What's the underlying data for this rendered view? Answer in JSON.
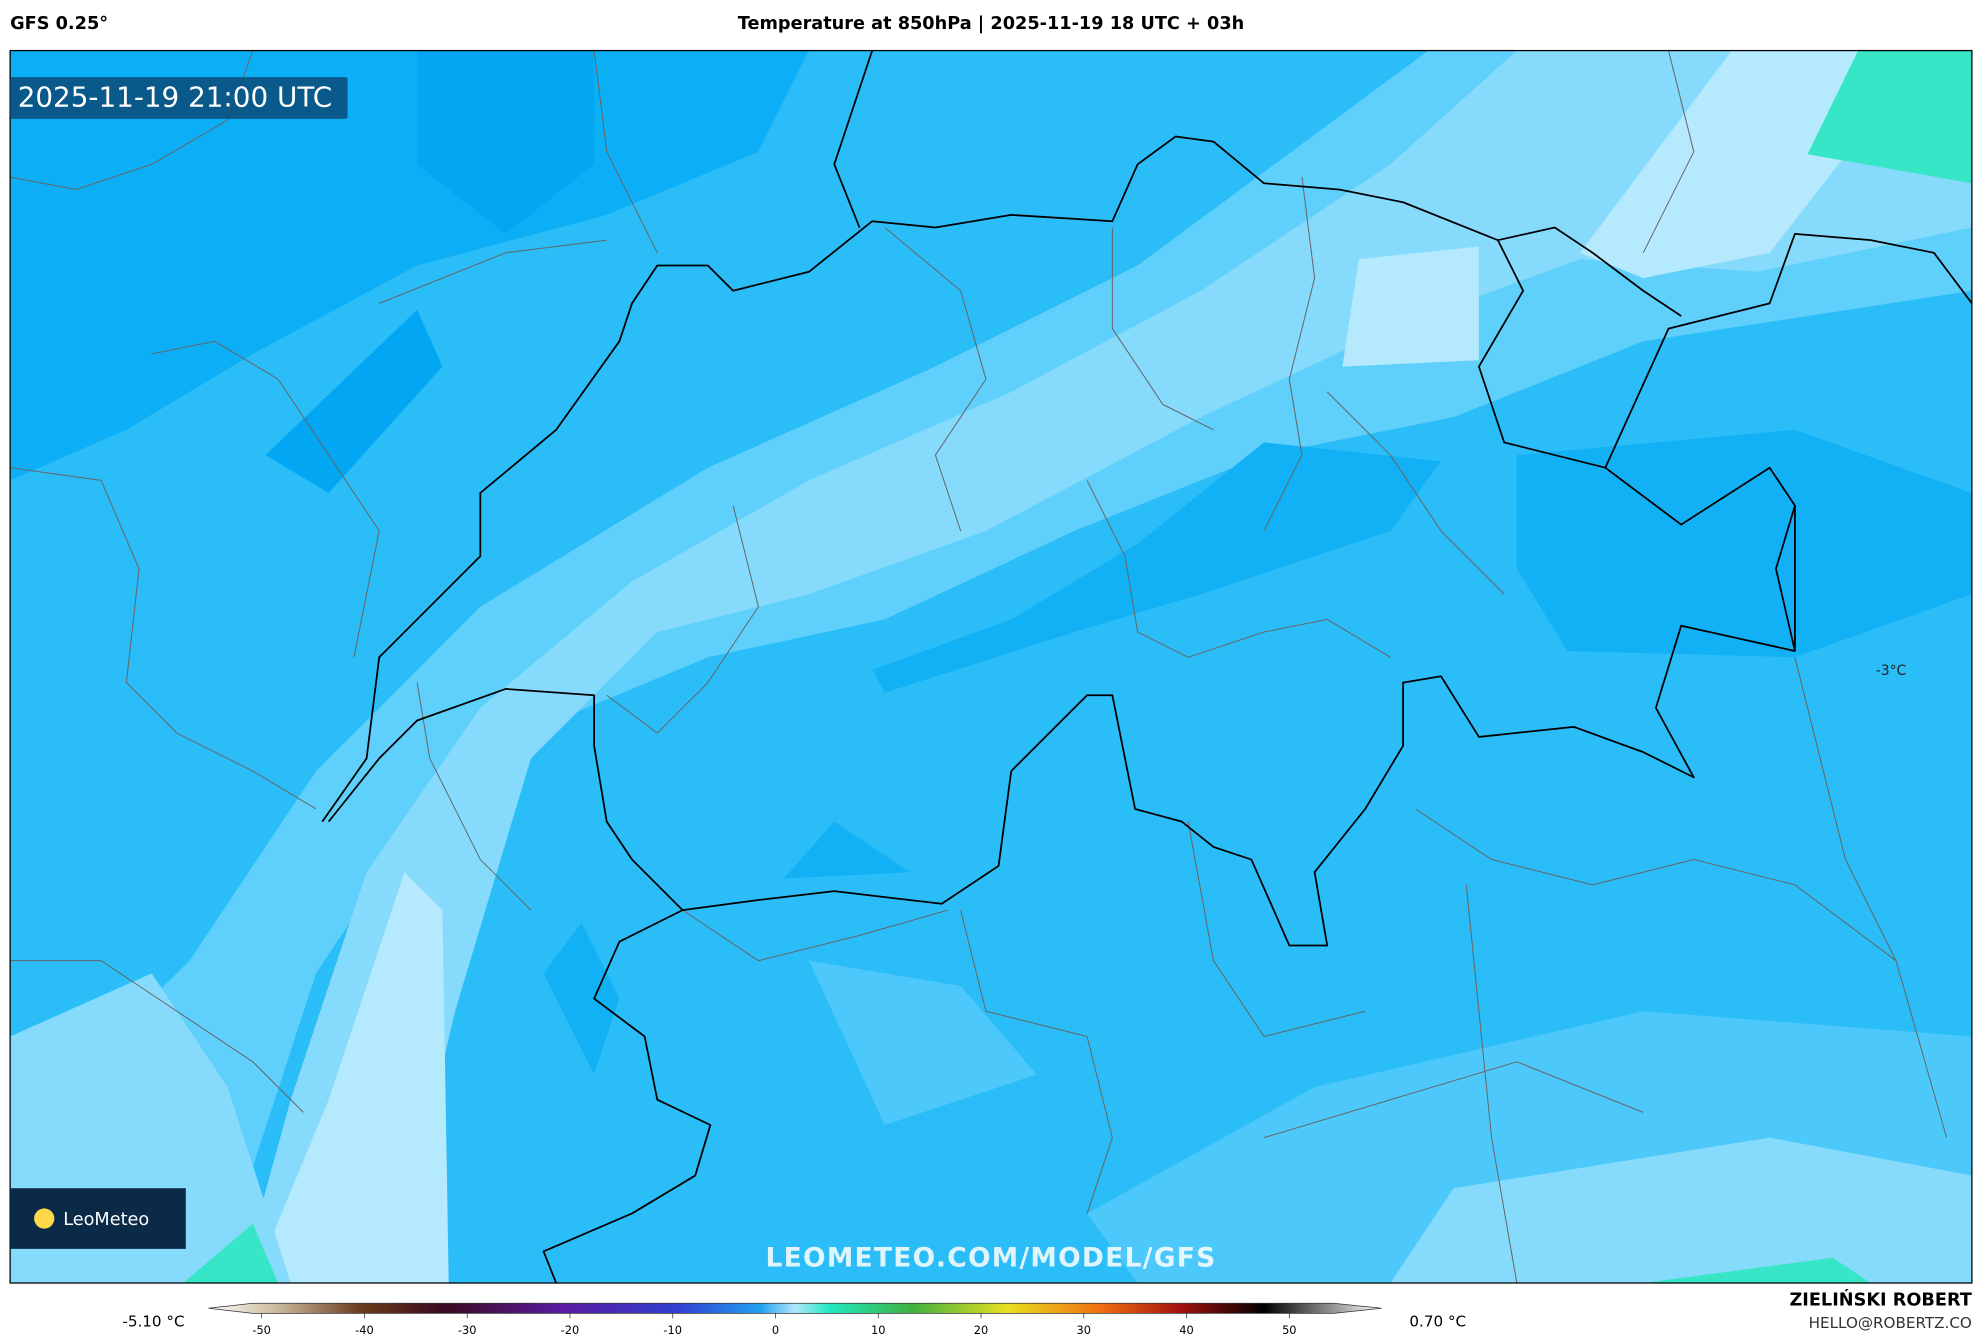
{
  "header": {
    "model": "GFS 0.25°",
    "title": "Temperature at 850hPa | 2025-11-19 18 UTC + 03h"
  },
  "map": {
    "valid_time": "2025-11-19 21:00 UTC",
    "contour_label": "-3°C",
    "logo": "LeoMeteo",
    "watermark": "LEOMETEO.COM/MODEL/GFS"
  },
  "legend": {
    "min": "-5.10 °C",
    "max": "0.70 °C",
    "ticks": [
      -50,
      -40,
      -30,
      -20,
      -10,
      0,
      10,
      20,
      30,
      40,
      50
    ]
  },
  "footer": {
    "author": "ZIELIŃSKI ROBERT",
    "contact": "HELLO@ROBERTZ.CO"
  }
}
